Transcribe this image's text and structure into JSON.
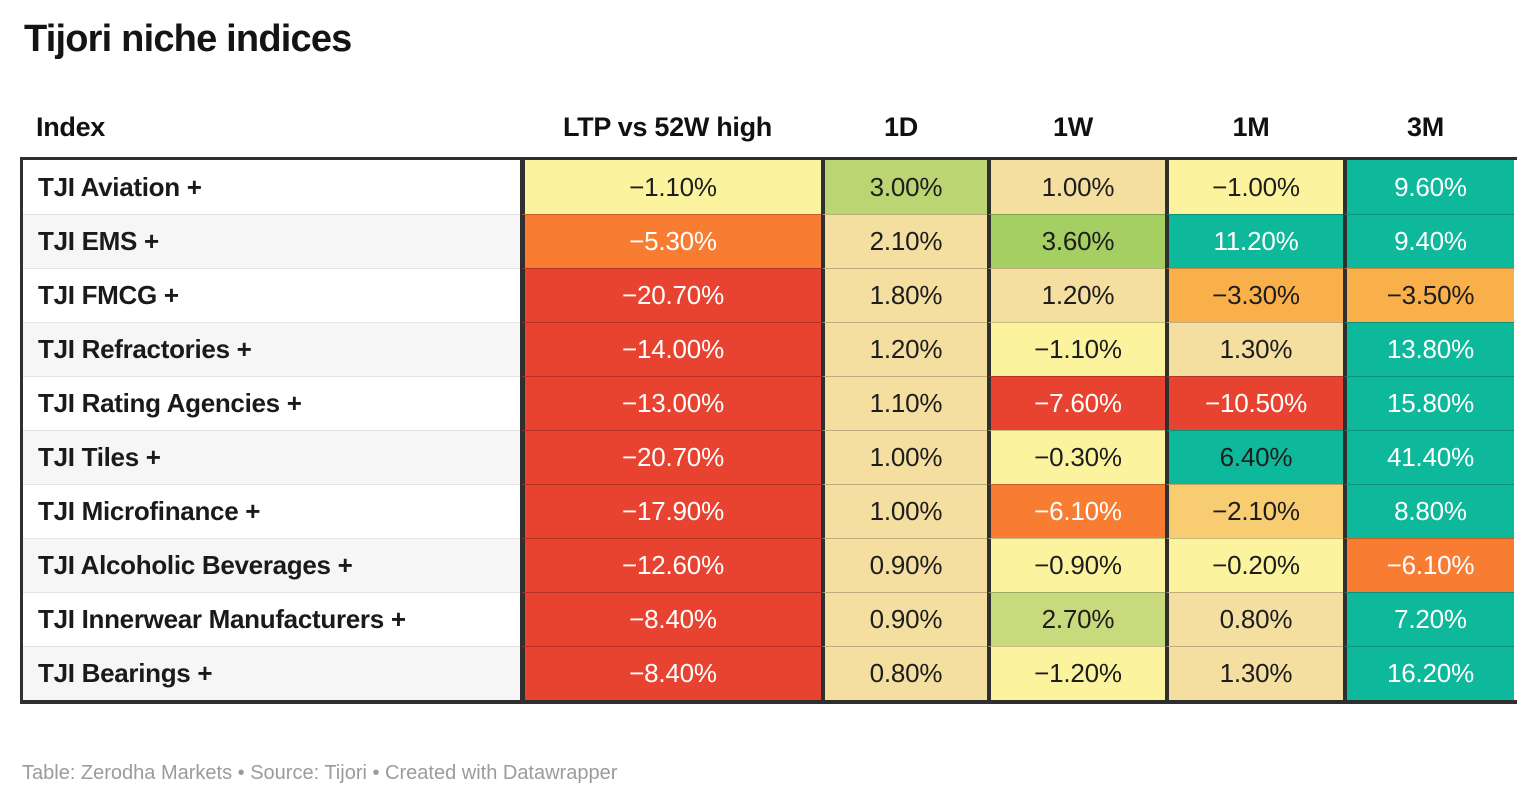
{
  "title": "Tijori niche indices",
  "footer": "Table: Zerodha Markets • Source: Tijori • Created with Datawrapper",
  "palette": {
    "pale_yellow": "#fbf39e",
    "cream": "#f4dfa0",
    "gold": "#f8cc70",
    "amber": "#f9b04a",
    "orange": "#f87d33",
    "red": "#e84330",
    "yellow_green": "#bcd573",
    "green": "#a5cf62",
    "light_green": "#c9da7d",
    "teal": "#0eb89b",
    "text_dark": "#1d1d1d",
    "text_light": "#ffffff",
    "border_dark": "#2f2f2f"
  },
  "table": {
    "columns": [
      "Index",
      "LTP vs 52W high",
      "1D",
      "1W",
      "1M",
      "3M"
    ],
    "rows": [
      {
        "label": "TJI Aviation +",
        "cells": [
          {
            "text": "−1.10%",
            "bg": "pale_yellow",
            "fg": "dark"
          },
          {
            "text": "3.00%",
            "bg": "yellow_green",
            "fg": "dark"
          },
          {
            "text": "1.00%",
            "bg": "cream",
            "fg": "dark"
          },
          {
            "text": "−1.00%",
            "bg": "pale_yellow",
            "fg": "dark"
          },
          {
            "text": "9.60%",
            "bg": "teal",
            "fg": "light"
          }
        ]
      },
      {
        "label": "TJI EMS +",
        "cells": [
          {
            "text": "−5.30%",
            "bg": "orange",
            "fg": "light"
          },
          {
            "text": "2.10%",
            "bg": "cream",
            "fg": "dark"
          },
          {
            "text": "3.60%",
            "bg": "green",
            "fg": "dark"
          },
          {
            "text": "11.20%",
            "bg": "teal",
            "fg": "light"
          },
          {
            "text": "9.40%",
            "bg": "teal",
            "fg": "light"
          }
        ]
      },
      {
        "label": "TJI FMCG +",
        "cells": [
          {
            "text": "−20.70%",
            "bg": "red",
            "fg": "light"
          },
          {
            "text": "1.80%",
            "bg": "cream",
            "fg": "dark"
          },
          {
            "text": "1.20%",
            "bg": "cream",
            "fg": "dark"
          },
          {
            "text": "−3.30%",
            "bg": "amber",
            "fg": "dark"
          },
          {
            "text": "−3.50%",
            "bg": "amber",
            "fg": "dark"
          }
        ]
      },
      {
        "label": "TJI Refractories +",
        "cells": [
          {
            "text": "−14.00%",
            "bg": "red",
            "fg": "light"
          },
          {
            "text": "1.20%",
            "bg": "cream",
            "fg": "dark"
          },
          {
            "text": "−1.10%",
            "bg": "pale_yellow",
            "fg": "dark"
          },
          {
            "text": "1.30%",
            "bg": "cream",
            "fg": "dark"
          },
          {
            "text": "13.80%",
            "bg": "teal",
            "fg": "light"
          }
        ]
      },
      {
        "label": "TJI Rating Agencies +",
        "cells": [
          {
            "text": "−13.00%",
            "bg": "red",
            "fg": "light"
          },
          {
            "text": "1.10%",
            "bg": "cream",
            "fg": "dark"
          },
          {
            "text": "−7.60%",
            "bg": "red",
            "fg": "light"
          },
          {
            "text": "−10.50%",
            "bg": "red",
            "fg": "light"
          },
          {
            "text": "15.80%",
            "bg": "teal",
            "fg": "light"
          }
        ]
      },
      {
        "label": "TJI Tiles +",
        "cells": [
          {
            "text": "−20.70%",
            "bg": "red",
            "fg": "light"
          },
          {
            "text": "1.00%",
            "bg": "cream",
            "fg": "dark"
          },
          {
            "text": "−0.30%",
            "bg": "pale_yellow",
            "fg": "dark"
          },
          {
            "text": "6.40%",
            "bg": "teal",
            "fg": "dark"
          },
          {
            "text": "41.40%",
            "bg": "teal",
            "fg": "light"
          }
        ]
      },
      {
        "label": "TJI Microfinance +",
        "cells": [
          {
            "text": "−17.90%",
            "bg": "red",
            "fg": "light"
          },
          {
            "text": "1.00%",
            "bg": "cream",
            "fg": "dark"
          },
          {
            "text": "−6.10%",
            "bg": "orange",
            "fg": "light"
          },
          {
            "text": "−2.10%",
            "bg": "gold",
            "fg": "dark"
          },
          {
            "text": "8.80%",
            "bg": "teal",
            "fg": "light"
          }
        ]
      },
      {
        "label": "TJI Alcoholic Beverages +",
        "cells": [
          {
            "text": "−12.60%",
            "bg": "red",
            "fg": "light"
          },
          {
            "text": "0.90%",
            "bg": "cream",
            "fg": "dark"
          },
          {
            "text": "−0.90%",
            "bg": "pale_yellow",
            "fg": "dark"
          },
          {
            "text": "−0.20%",
            "bg": "pale_yellow",
            "fg": "dark"
          },
          {
            "text": "−6.10%",
            "bg": "orange",
            "fg": "light"
          }
        ]
      },
      {
        "label": "TJI Innerwear Manufacturers +",
        "cells": [
          {
            "text": "−8.40%",
            "bg": "red",
            "fg": "light"
          },
          {
            "text": "0.90%",
            "bg": "cream",
            "fg": "dark"
          },
          {
            "text": "2.70%",
            "bg": "light_green",
            "fg": "dark"
          },
          {
            "text": "0.80%",
            "bg": "cream",
            "fg": "dark"
          },
          {
            "text": "7.20%",
            "bg": "teal",
            "fg": "light"
          }
        ]
      },
      {
        "label": "TJI Bearings +",
        "cells": [
          {
            "text": "−8.40%",
            "bg": "red",
            "fg": "light"
          },
          {
            "text": "0.80%",
            "bg": "cream",
            "fg": "dark"
          },
          {
            "text": "−1.20%",
            "bg": "pale_yellow",
            "fg": "dark"
          },
          {
            "text": "1.30%",
            "bg": "cream",
            "fg": "dark"
          },
          {
            "text": "16.20%",
            "bg": "teal",
            "fg": "light"
          }
        ]
      }
    ]
  },
  "chart_data": {
    "type": "table",
    "title": "Tijori niche indices",
    "columns": [
      "Index",
      "LTP vs 52W high",
      "1D",
      "1W",
      "1M",
      "3M"
    ],
    "rows": [
      [
        "TJI Aviation +",
        -1.1,
        3.0,
        1.0,
        -1.0,
        9.6
      ],
      [
        "TJI EMS +",
        -5.3,
        2.1,
        3.6,
        11.2,
        9.4
      ],
      [
        "TJI FMCG +",
        -20.7,
        1.8,
        1.2,
        -3.3,
        -3.5
      ],
      [
        "TJI Refractories +",
        -14.0,
        1.2,
        -1.1,
        1.3,
        13.8
      ],
      [
        "TJI Rating Agencies +",
        -13.0,
        1.1,
        -7.6,
        -10.5,
        15.8
      ],
      [
        "TJI Tiles +",
        -20.7,
        1.0,
        -0.3,
        6.4,
        41.4
      ],
      [
        "TJI Microfinance +",
        -17.9,
        1.0,
        -6.1,
        -2.1,
        8.8
      ],
      [
        "TJI Alcoholic Beverages +",
        -12.6,
        0.9,
        -0.9,
        -0.2,
        -6.1
      ],
      [
        "TJI Innerwear Manufacturers +",
        -8.4,
        0.9,
        2.7,
        0.8,
        7.2
      ],
      [
        "TJI Bearings +",
        -8.4,
        0.8,
        -1.2,
        1.3,
        16.2
      ]
    ],
    "units": "percent",
    "footer": "Table: Zerodha Markets • Source: Tijori • Created with Datawrapper",
    "color_scale": "diverging red (negative) → yellow (near zero) → green/teal (positive)"
  }
}
